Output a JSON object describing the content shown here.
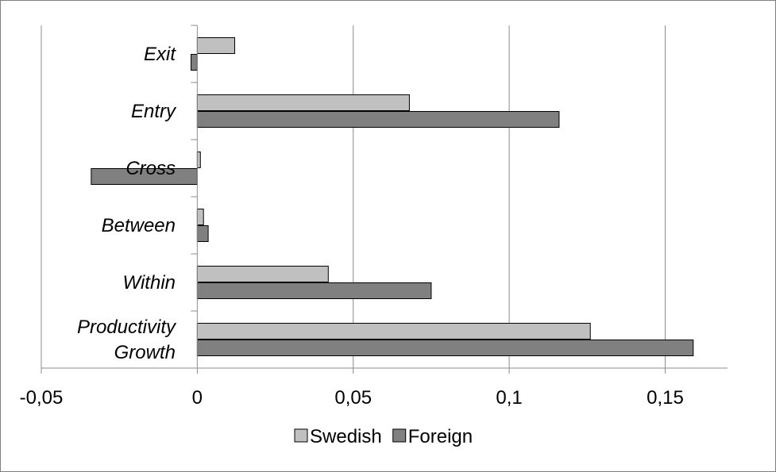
{
  "chart_data": {
    "type": "bar",
    "orientation": "horizontal",
    "title": "",
    "xlabel": "",
    "ylabel": "",
    "categories": [
      "Exit",
      "Entry",
      "Cross",
      "Between",
      "Within",
      "Productivity Growth"
    ],
    "category_lines": [
      [
        "Exit"
      ],
      [
        "Entry"
      ],
      [
        "Cross"
      ],
      [
        "Between"
      ],
      [
        "Within"
      ],
      [
        "Productivity",
        "Growth"
      ]
    ],
    "series": [
      {
        "name": "Swedish",
        "color": "#c0c0c0",
        "values": [
          0.012,
          0.068,
          0.001,
          0.002,
          0.042,
          0.126
        ]
      },
      {
        "name": "Foreign",
        "color": "#808080",
        "values": [
          -0.002,
          0.116,
          -0.034,
          0.0035,
          0.075,
          0.159
        ]
      }
    ],
    "xlim": [
      -0.05,
      0.17
    ],
    "xticks": [
      -0.05,
      0,
      0.05,
      0.1,
      0.15
    ],
    "xtick_labels": [
      "-0,05",
      "0",
      "0,05",
      "0,1",
      "0,15"
    ],
    "grid": "vertical",
    "legend_position": "bottom"
  }
}
